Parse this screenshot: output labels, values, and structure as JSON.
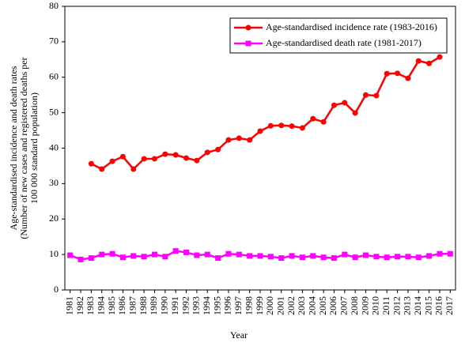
{
  "chart_data": {
    "type": "line",
    "ylabel": [
      "Age-standardised incidence and death rates",
      "(Number of new cases and registered deaths per",
      "100 000 standard population)"
    ],
    "xlabel": "Year",
    "categories": [
      "1981",
      "1982",
      "1983",
      "1984",
      "1985",
      "1986",
      "1987",
      "1988",
      "1989",
      "1990",
      "1991",
      "1992",
      "1993",
      "1994",
      "1995",
      "1996",
      "1997",
      "1998",
      "1999",
      "2000",
      "2001",
      "2002",
      "2003",
      "2004",
      "2005",
      "2006",
      "2007",
      "2008",
      "2009",
      "2010",
      "2011",
      "2012",
      "2013",
      "2014",
      "2015",
      "2016",
      "2017"
    ],
    "series": [
      {
        "name": "Age-standardised incidence rate (1983-2016)",
        "color": "#ff0000",
        "marker": "circle",
        "values": [
          null,
          null,
          35.6,
          34.1,
          36.3,
          37.6,
          34.1,
          37.0,
          37.0,
          38.3,
          38.1,
          37.2,
          36.5,
          38.8,
          39.6,
          42.3,
          42.8,
          42.3,
          44.8,
          46.3,
          46.4,
          46.2,
          45.7,
          48.3,
          47.4,
          52.1,
          52.8,
          49.9,
          55.0,
          54.8,
          61.0,
          61.1,
          59.7,
          64.6,
          63.9,
          65.7,
          null
        ]
      },
      {
        "name": "Age-standardised death rate (1981-2017)",
        "color": "#ff00ff",
        "marker": "square",
        "values": [
          9.8,
          8.6,
          9.0,
          10.0,
          10.2,
          9.2,
          9.6,
          9.4,
          10.0,
          9.4,
          11.0,
          10.6,
          9.8,
          10.0,
          9.0,
          10.2,
          10.0,
          9.6,
          9.6,
          9.4,
          9.0,
          9.6,
          9.2,
          9.6,
          9.2,
          9.0,
          10.0,
          9.2,
          9.8,
          9.4,
          9.2,
          9.4,
          9.4,
          9.2,
          9.6,
          10.2,
          10.2
        ]
      }
    ],
    "ylim": [
      0,
      80
    ],
    "yticks": [
      0,
      10,
      20,
      30,
      40,
      50,
      60,
      70,
      80
    ],
    "grid": false,
    "legend": "upper right"
  }
}
